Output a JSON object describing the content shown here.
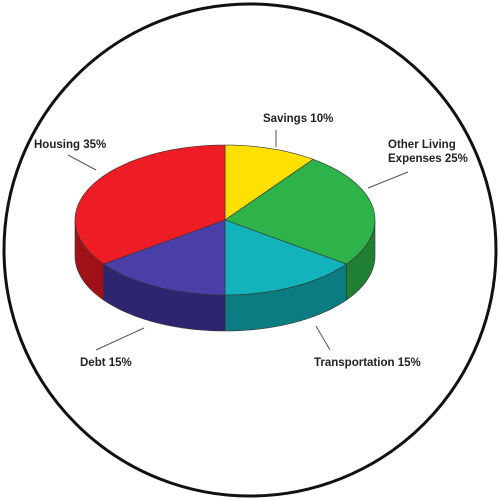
{
  "chart_data": {
    "type": "pie",
    "title": "",
    "style": "3d-exploded-none",
    "slices": [
      {
        "label": "Savings 10%",
        "name": "Savings",
        "value": 10,
        "color": "#ffe000",
        "side_color": "#c9ae00"
      },
      {
        "label": "Other Living Expenses 25%",
        "label_lines": [
          "Other Living",
          "Expenses 25%"
        ],
        "name": "Other Living Expenses",
        "value": 25,
        "color": "#2db34a",
        "side_color": "#1f7f33"
      },
      {
        "label": "Transportation 15%",
        "name": "Transportation",
        "value": 15,
        "color": "#12b3bb",
        "side_color": "#0b7d82"
      },
      {
        "label": "Debt 15%",
        "name": "Debt",
        "value": 15,
        "color": "#4a3fa6",
        "side_color": "#2e2570"
      },
      {
        "label": "Housing 35%",
        "name": "Housing",
        "value": 35,
        "color": "#ee1c24",
        "side_color": "#a01218"
      }
    ]
  },
  "frame": {
    "border_color": "#111111",
    "background": "#ffffff"
  }
}
